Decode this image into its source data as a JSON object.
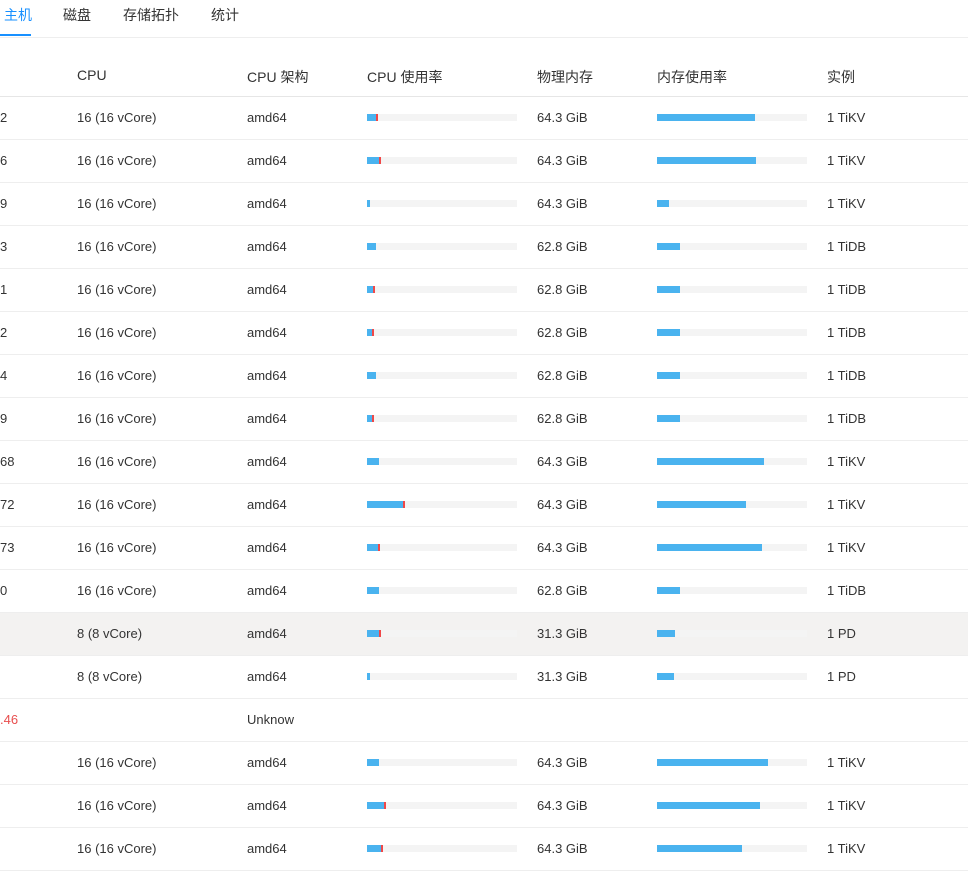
{
  "tabs": [
    {
      "label": "主机",
      "active": true
    },
    {
      "label": "磁盘",
      "active": false
    },
    {
      "label": "存储拓扑",
      "active": false
    },
    {
      "label": "统计",
      "active": false
    }
  ],
  "columns": {
    "cpu": "CPU",
    "arch": "CPU 架构",
    "cpu_usage": "CPU 使用率",
    "memory": "物理内存",
    "mem_usage": "内存使用率",
    "instance": "实例"
  },
  "colors": {
    "accent": "#1890ff",
    "bar_fill": "#4ab3ef",
    "bar_system": "#f04848",
    "error_text": "#e84e4e"
  },
  "rows": [
    {
      "host_suffix": "2",
      "cpu": "16 (16 vCore)",
      "arch": "amd64",
      "cpu_usage": 0.06,
      "cpu_system": 0.015,
      "memory": "64.3 GiB",
      "mem_usage": 0.65,
      "instance": "1 TiKV"
    },
    {
      "host_suffix": "6",
      "cpu": "16 (16 vCore)",
      "arch": "amd64",
      "cpu_usage": 0.08,
      "cpu_system": 0.015,
      "memory": "64.3 GiB",
      "mem_usage": 0.66,
      "instance": "1 TiKV"
    },
    {
      "host_suffix": "9",
      "cpu": "16 (16 vCore)",
      "arch": "amd64",
      "cpu_usage": 0.02,
      "cpu_system": 0.0,
      "memory": "64.3 GiB",
      "mem_usage": 0.08,
      "instance": "1 TiKV"
    },
    {
      "host_suffix": "3",
      "cpu": "16 (16 vCore)",
      "arch": "amd64",
      "cpu_usage": 0.06,
      "cpu_system": 0.0,
      "memory": "62.8 GiB",
      "mem_usage": 0.15,
      "instance": "1 TiDB"
    },
    {
      "host_suffix": "1",
      "cpu": "16 (16 vCore)",
      "arch": "amd64",
      "cpu_usage": 0.04,
      "cpu_system": 0.015,
      "memory": "62.8 GiB",
      "mem_usage": 0.15,
      "instance": "1 TiDB"
    },
    {
      "host_suffix": "2",
      "cpu": "16 (16 vCore)",
      "arch": "amd64",
      "cpu_usage": 0.03,
      "cpu_system": 0.01,
      "memory": "62.8 GiB",
      "mem_usage": 0.15,
      "instance": "1 TiDB"
    },
    {
      "host_suffix": "4",
      "cpu": "16 (16 vCore)",
      "arch": "amd64",
      "cpu_usage": 0.06,
      "cpu_system": 0.0,
      "memory": "62.8 GiB",
      "mem_usage": 0.15,
      "instance": "1 TiDB"
    },
    {
      "host_suffix": "9",
      "cpu": "16 (16 vCore)",
      "arch": "amd64",
      "cpu_usage": 0.03,
      "cpu_system": 0.01,
      "memory": "62.8 GiB",
      "mem_usage": 0.15,
      "instance": "1 TiDB"
    },
    {
      "host_suffix": "68",
      "cpu": "16 (16 vCore)",
      "arch": "amd64",
      "cpu_usage": 0.08,
      "cpu_system": 0.0,
      "memory": "64.3 GiB",
      "mem_usage": 0.71,
      "instance": "1 TiKV"
    },
    {
      "host_suffix": "72",
      "cpu": "16 (16 vCore)",
      "arch": "amd64",
      "cpu_usage": 0.24,
      "cpu_system": 0.01,
      "memory": "64.3 GiB",
      "mem_usage": 0.59,
      "instance": "1 TiKV"
    },
    {
      "host_suffix": "73",
      "cpu": "16 (16 vCore)",
      "arch": "amd64",
      "cpu_usage": 0.07,
      "cpu_system": 0.015,
      "memory": "64.3 GiB",
      "mem_usage": 0.7,
      "instance": "1 TiKV"
    },
    {
      "host_suffix": "0",
      "cpu": "16 (16 vCore)",
      "arch": "amd64",
      "cpu_usage": 0.08,
      "cpu_system": 0.0,
      "memory": "62.8 GiB",
      "mem_usage": 0.15,
      "instance": "1 TiDB"
    },
    {
      "host_suffix": "",
      "cpu": "8 (8 vCore)",
      "arch": "amd64",
      "cpu_usage": 0.08,
      "cpu_system": 0.015,
      "memory": "31.3 GiB",
      "mem_usage": 0.12,
      "instance": "1 PD",
      "highlighted": true
    },
    {
      "host_suffix": "",
      "cpu": "8 (8 vCore)",
      "arch": "amd64",
      "cpu_usage": 0.02,
      "cpu_system": 0.0,
      "memory": "31.3 GiB",
      "mem_usage": 0.11,
      "instance": "1 PD"
    },
    {
      "host_suffix": ".46",
      "cpu": "",
      "arch": "Unknow",
      "cpu_usage": null,
      "cpu_system": null,
      "memory": "",
      "mem_usage": null,
      "instance": "",
      "error": true
    },
    {
      "host_suffix": "",
      "cpu": "16 (16 vCore)",
      "arch": "amd64",
      "cpu_usage": 0.08,
      "cpu_system": 0.0,
      "memory": "64.3 GiB",
      "mem_usage": 0.74,
      "instance": "1 TiKV"
    },
    {
      "host_suffix": "",
      "cpu": "16 (16 vCore)",
      "arch": "amd64",
      "cpu_usage": 0.11,
      "cpu_system": 0.015,
      "memory": "64.3 GiB",
      "mem_usage": 0.69,
      "instance": "1 TiKV"
    },
    {
      "host_suffix": "",
      "cpu": "16 (16 vCore)",
      "arch": "amd64",
      "cpu_usage": 0.09,
      "cpu_system": 0.01,
      "memory": "64.3 GiB",
      "mem_usage": 0.57,
      "instance": "1 TiKV"
    }
  ]
}
